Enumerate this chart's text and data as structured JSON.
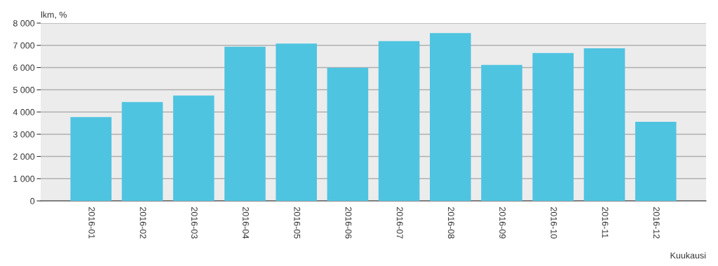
{
  "chart_data": {
    "type": "bar",
    "ylabel": "lkm, %",
    "xlabel": "Kuukausi",
    "categories": [
      "2016-01",
      "2016-02",
      "2016-03",
      "2016-04",
      "2016-05",
      "2016-06",
      "2016-07",
      "2016-08",
      "2016-09",
      "2016-10",
      "2016-11",
      "2016-12"
    ],
    "series": [
      {
        "color": "#4fc4e0",
        "values": [
          3770,
          4450,
          4740,
          6940,
          7080,
          5990,
          7190,
          7550,
          6120,
          6650,
          6870,
          3560
        ]
      }
    ],
    "ylim": [
      0,
      8000
    ],
    "yticks": [
      0,
      {
        "value": 1000,
        "label": "1 000"
      },
      {
        "value": 2000,
        "label": "2 000"
      },
      {
        "value": 3000,
        "label": "3 000"
      },
      {
        "value": 4000,
        "label": "4 000"
      },
      {
        "value": 5000,
        "label": "5 000"
      },
      {
        "value": 6000,
        "label": "6 000"
      },
      {
        "value": 7000,
        "label": "7 000"
      },
      {
        "value": 8000,
        "label": "8 000"
      }
    ],
    "grid": "y"
  }
}
